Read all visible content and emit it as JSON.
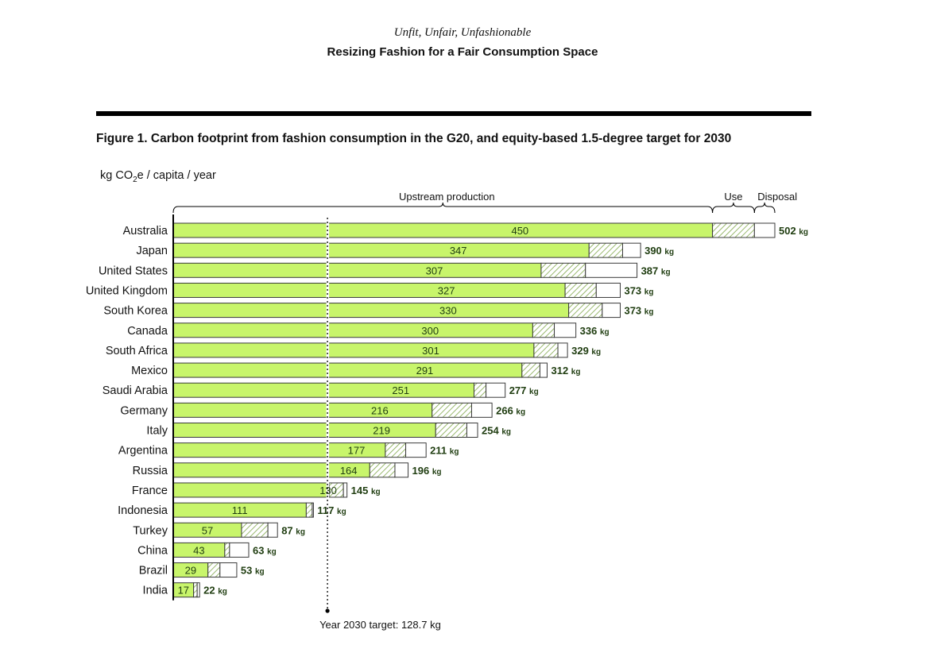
{
  "document": {
    "series": "Unfit, Unfair, Unfashionable",
    "title": "Resizing Fashion for a Fair Consumption Space"
  },
  "figure": {
    "caption": "Figure 1. Carbon footprint from fashion consumption in the G20, and equity-based 1.5-degree target for 2030",
    "unit_prefix": "kg CO",
    "unit_sub": "2",
    "unit_suffix": "e / capita / year"
  },
  "colors": {
    "production": "#c8f56b",
    "use_hatch": "#7fa64a",
    "disposal": "#ffffff",
    "outline": "#3a3a3a",
    "value_text": "#1f3d10"
  },
  "chart_data": {
    "type": "bar",
    "orientation": "horizontal",
    "stacked": true,
    "segment_headers": [
      "Upstream production",
      "Use",
      "Disposal"
    ],
    "categories": [
      "Australia",
      "Japan",
      "United States",
      "United Kingdom",
      "South Korea",
      "Canada",
      "South Africa",
      "Mexico",
      "Saudi Arabia",
      "Germany",
      "Italy",
      "Argentina",
      "Russia",
      "France",
      "Indonesia",
      "Turkey",
      "China",
      "Brazil",
      "India"
    ],
    "series": [
      {
        "name": "Upstream production",
        "values": [
          450,
          347,
          307,
          327,
          330,
          300,
          301,
          291,
          251,
          216,
          219,
          177,
          164,
          130,
          111,
          57,
          43,
          29,
          17
        ],
        "pattern": "solid"
      },
      {
        "name": "Use",
        "values": [
          35,
          28,
          37,
          26,
          28,
          18,
          20,
          15,
          10,
          33,
          26,
          17,
          21,
          12,
          5,
          22,
          4,
          10,
          3
        ],
        "pattern": "hatched"
      },
      {
        "name": "Disposal",
        "values": [
          17,
          15,
          43,
          20,
          15,
          18,
          8,
          6,
          16,
          17,
          9,
          17,
          11,
          3,
          1,
          8,
          16,
          14,
          2
        ],
        "pattern": "outline"
      }
    ],
    "totals": [
      502,
      390,
      387,
      373,
      373,
      336,
      329,
      312,
      277,
      266,
      254,
      211,
      196,
      145,
      117,
      87,
      63,
      53,
      22
    ],
    "total_unit": "kg",
    "reference_line": {
      "value": 128.7,
      "label": "Year 2030 target: 128.7 kg"
    },
    "xlim": [
      0,
      502
    ],
    "grid": false,
    "legend": "none"
  }
}
